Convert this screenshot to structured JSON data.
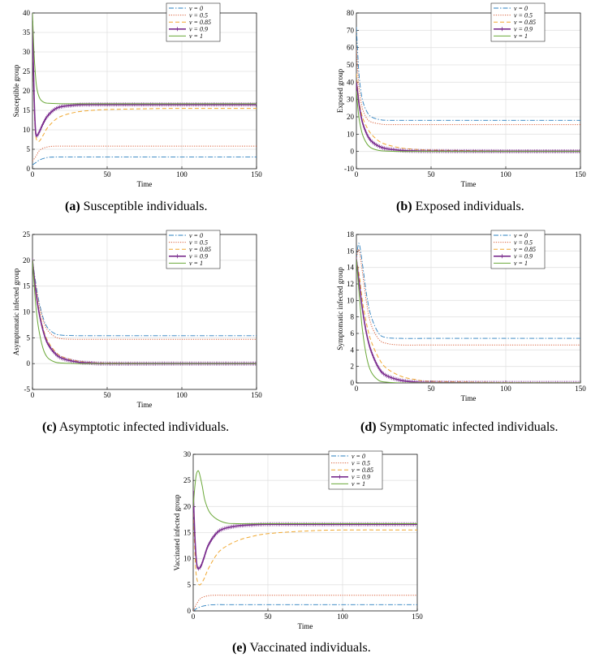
{
  "colors": {
    "nu0": "#2a7fbf",
    "nu05": "#d9603b",
    "nu085": "#f0a830",
    "nu09": "#7b2d8e",
    "nu1": "#6aa838"
  },
  "legend_labels": [
    "ν = 0",
    "ν = 0.5",
    "ν = 0.85",
    "ν = 0.9",
    "ν = 1"
  ],
  "captions": [
    {
      "tag": "(a)",
      "text": " Susceptible individuals."
    },
    {
      "tag": "(b)",
      "text": " Exposed individuals."
    },
    {
      "tag": "(c)",
      "text": " Asymptotic infected individuals."
    },
    {
      "tag": "(d)",
      "text": " Symptomatic infected individuals."
    },
    {
      "tag": "(e)",
      "text": " Vaccinated individuals."
    }
  ],
  "chart_data": [
    {
      "type": "line",
      "xlabel": "Time",
      "ylabel": "Susceptible group",
      "xlim": [
        0,
        150
      ],
      "ylim": [
        0,
        40
      ],
      "xticks": [
        0,
        50,
        100,
        150
      ],
      "yticks": [
        0,
        5,
        10,
        15,
        20,
        25,
        30,
        35,
        40
      ],
      "grid": true,
      "legend": "top-right",
      "series": [
        {
          "name": "ν = 0",
          "x": [
            0,
            2,
            5,
            10,
            15,
            20,
            30,
            50,
            100,
            150
          ],
          "values": [
            1,
            1.5,
            2.3,
            2.9,
            3.0,
            3.0,
            3.0,
            3.0,
            3.0,
            3.0
          ]
        },
        {
          "name": "ν = 0.5",
          "x": [
            0,
            2,
            5,
            10,
            15,
            20,
            30,
            50,
            100,
            150
          ],
          "values": [
            2,
            3,
            4.8,
            5.6,
            5.8,
            5.8,
            5.8,
            5.8,
            5.8,
            5.8
          ]
        },
        {
          "name": "ν = 0.85",
          "x": [
            0,
            1,
            2,
            4,
            7,
            10,
            15,
            20,
            30,
            40,
            50,
            75,
            100,
            150
          ],
          "values": [
            35,
            18,
            9,
            7,
            8.5,
            10.5,
            12.5,
            13.6,
            14.6,
            15.0,
            15.2,
            15.4,
            15.5,
            15.5
          ]
        },
        {
          "name": "ν = 0.9",
          "x": [
            0,
            1,
            2,
            3,
            5,
            7,
            10,
            15,
            20,
            30,
            40,
            50,
            75,
            100,
            150
          ],
          "values": [
            38,
            20,
            10,
            8.5,
            9.8,
            11.5,
            13.5,
            15.3,
            16.0,
            16.4,
            16.5,
            16.5,
            16.5,
            16.5,
            16.5
          ]
        },
        {
          "name": "ν = 1",
          "x": [
            0,
            1,
            2,
            3,
            5,
            8,
            12,
            20,
            30,
            50,
            100,
            150
          ],
          "values": [
            40,
            30,
            24,
            20.5,
            18,
            17,
            16.8,
            16.7,
            16.7,
            16.7,
            16.7,
            16.7
          ]
        }
      ]
    },
    {
      "type": "line",
      "xlabel": "Time",
      "ylabel": "Exposed group",
      "xlim": [
        0,
        150
      ],
      "ylim": [
        -10,
        80
      ],
      "xticks": [
        0,
        50,
        100,
        150
      ],
      "yticks": [
        -10,
        0,
        10,
        20,
        30,
        40,
        50,
        60,
        70,
        80
      ],
      "grid": true,
      "legend": "top-right",
      "series": [
        {
          "name": "ν = 0",
          "x": [
            0,
            1,
            2,
            4,
            7,
            10,
            15,
            20,
            30,
            50,
            100,
            150
          ],
          "values": [
            72,
            55,
            42,
            30,
            23,
            20,
            18.5,
            18,
            18,
            18,
            18,
            18
          ]
        },
        {
          "name": "ν = 0.5",
          "x": [
            0,
            1,
            2,
            4,
            7,
            10,
            15,
            20,
            30,
            50,
            100,
            150
          ],
          "values": [
            60,
            45,
            35,
            25,
            19,
            17,
            16,
            15.5,
            15.5,
            15.5,
            15.5,
            15.5
          ]
        },
        {
          "name": "ν = 0.85",
          "x": [
            0,
            1,
            2,
            4,
            7,
            10,
            15,
            20,
            30,
            40,
            50,
            100,
            150
          ],
          "values": [
            45,
            35,
            28,
            20,
            14,
            10,
            6,
            4,
            2,
            1.2,
            0.8,
            0.3,
            0.2
          ]
        },
        {
          "name": "ν = 0.9",
          "x": [
            0,
            1,
            2,
            4,
            7,
            10,
            15,
            20,
            30,
            40,
            50,
            100,
            150
          ],
          "values": [
            40,
            33,
            26,
            17,
            10,
            6,
            3,
            1.6,
            0.6,
            0.3,
            0.2,
            0.1,
            0.1
          ]
        },
        {
          "name": "ν = 1",
          "x": [
            0,
            1,
            2,
            4,
            7,
            10,
            15,
            20,
            30,
            50,
            100,
            150
          ],
          "values": [
            35,
            25,
            18,
            10,
            4.5,
            2,
            0.6,
            0.2,
            0,
            0,
            0,
            0
          ]
        }
      ]
    },
    {
      "type": "line",
      "xlabel": "Time",
      "ylabel": "Asymptomatic infected group",
      "xlim": [
        0,
        150
      ],
      "ylim": [
        -5,
        25
      ],
      "xticks": [
        0,
        50,
        100,
        150
      ],
      "yticks": [
        -5,
        0,
        5,
        10,
        15,
        20,
        25
      ],
      "grid": true,
      "legend": "top-right",
      "series": [
        {
          "name": "ν = 0",
          "x": [
            0,
            2,
            4,
            7,
            10,
            15,
            20,
            30,
            50,
            100,
            150
          ],
          "values": [
            20,
            16,
            12.5,
            9,
            7,
            5.8,
            5.5,
            5.4,
            5.4,
            5.4,
            5.4
          ]
        },
        {
          "name": "ν = 0.5",
          "x": [
            0,
            2,
            4,
            7,
            10,
            15,
            20,
            30,
            50,
            100,
            150
          ],
          "values": [
            20,
            15.5,
            12,
            8.5,
            6.5,
            5.2,
            4.8,
            4.7,
            4.7,
            4.7,
            4.7
          ]
        },
        {
          "name": "ν = 0.85",
          "x": [
            0,
            2,
            4,
            7,
            10,
            15,
            20,
            30,
            40,
            50,
            100,
            150
          ],
          "values": [
            20,
            15,
            11,
            7,
            4.5,
            2.4,
            1.3,
            0.5,
            0.2,
            0.1,
            0,
            0
          ]
        },
        {
          "name": "ν = 0.9",
          "x": [
            0,
            2,
            4,
            7,
            10,
            15,
            20,
            30,
            40,
            50,
            100,
            150
          ],
          "values": [
            20,
            14.5,
            10.5,
            6.5,
            4,
            2,
            1,
            0.3,
            0.1,
            0,
            0,
            0
          ]
        },
        {
          "name": "ν = 1",
          "x": [
            0,
            2,
            4,
            7,
            10,
            15,
            20,
            30,
            50,
            100,
            150
          ],
          "values": [
            20,
            12,
            7,
            3,
            1.2,
            0.3,
            0.1,
            0,
            0,
            0,
            0
          ]
        }
      ]
    },
    {
      "type": "line",
      "xlabel": "Time",
      "ylabel": "Symptomatic infected group",
      "xlim": [
        0,
        150
      ],
      "ylim": [
        0,
        18
      ],
      "xticks": [
        0,
        50,
        100,
        150
      ],
      "yticks": [
        0,
        2,
        4,
        6,
        8,
        10,
        12,
        14,
        16,
        18
      ],
      "grid": true,
      "legend": "top-right",
      "series": [
        {
          "name": "ν = 0",
          "x": [
            0,
            1,
            2,
            4,
            7,
            10,
            15,
            20,
            30,
            50,
            100,
            150
          ],
          "values": [
            15,
            16.5,
            16.8,
            14.5,
            10.5,
            8,
            6,
            5.5,
            5.4,
            5.4,
            5.4,
            5.4
          ]
        },
        {
          "name": "ν = 0.5",
          "x": [
            0,
            1,
            2,
            4,
            7,
            10,
            15,
            20,
            30,
            50,
            100,
            150
          ],
          "values": [
            15,
            16,
            16,
            13.5,
            9.5,
            7,
            5.3,
            4.8,
            4.6,
            4.6,
            4.6,
            4.6
          ]
        },
        {
          "name": "ν = 0.85",
          "x": [
            0,
            2,
            4,
            7,
            10,
            15,
            20,
            30,
            40,
            50,
            100,
            150
          ],
          "values": [
            15,
            13,
            10,
            7,
            5,
            3,
            1.8,
            0.8,
            0.4,
            0.2,
            0.05,
            0
          ]
        },
        {
          "name": "ν = 0.9",
          "x": [
            0,
            2,
            4,
            7,
            10,
            15,
            20,
            30,
            40,
            50,
            100,
            150
          ],
          "values": [
            15,
            12,
            9,
            5.8,
            3.8,
            1.8,
            0.9,
            0.3,
            0.1,
            0.05,
            0,
            0
          ]
        },
        {
          "name": "ν = 1",
          "x": [
            0,
            2,
            4,
            7,
            10,
            15,
            20,
            30,
            50,
            100,
            150
          ],
          "values": [
            15,
            10.5,
            6.5,
            3,
            1.3,
            0.3,
            0.1,
            0,
            0,
            0,
            0
          ]
        }
      ]
    },
    {
      "type": "line",
      "xlabel": "Time",
      "ylabel": "Vaccinated infected group",
      "xlim": [
        0,
        150
      ],
      "ylim": [
        0,
        30
      ],
      "xticks": [
        0,
        50,
        100,
        150
      ],
      "yticks": [
        0,
        5,
        10,
        15,
        20,
        25,
        30
      ],
      "grid": true,
      "legend": "top-right",
      "series": [
        {
          "name": "ν = 0",
          "x": [
            0,
            2,
            5,
            10,
            15,
            20,
            30,
            50,
            100,
            150
          ],
          "values": [
            0,
            0.4,
            0.8,
            1.1,
            1.2,
            1.2,
            1.2,
            1.2,
            1.2,
            1.2
          ]
        },
        {
          "name": "ν = 0.5",
          "x": [
            0,
            2,
            5,
            10,
            15,
            20,
            30,
            50,
            100,
            150
          ],
          "values": [
            0,
            1.2,
            2.4,
            2.9,
            3.0,
            3.0,
            3.0,
            3.0,
            3.0,
            3.0
          ]
        },
        {
          "name": "ν = 0.85",
          "x": [
            0,
            1,
            2,
            4,
            7,
            10,
            15,
            20,
            30,
            40,
            50,
            75,
            100,
            150
          ],
          "values": [
            20,
            12,
            7,
            5,
            6,
            8,
            10.5,
            12,
            13.5,
            14.3,
            14.8,
            15.3,
            15.5,
            15.5
          ]
        },
        {
          "name": "ν = 0.9",
          "x": [
            0,
            1,
            2,
            3,
            5,
            7,
            10,
            15,
            20,
            30,
            40,
            50,
            75,
            100,
            150
          ],
          "values": [
            23,
            15,
            10,
            8.2,
            8.5,
            10,
            12.5,
            14.7,
            15.7,
            16.3,
            16.5,
            16.6,
            16.6,
            16.6,
            16.6
          ]
        },
        {
          "name": "ν = 1",
          "x": [
            0,
            1,
            2,
            3,
            4,
            6,
            8,
            12,
            20,
            30,
            50,
            100,
            150
          ],
          "values": [
            20,
            23.5,
            26,
            26.8,
            26.5,
            24,
            21,
            18.5,
            17,
            16.7,
            16.7,
            16.7,
            16.7
          ]
        }
      ]
    }
  ]
}
